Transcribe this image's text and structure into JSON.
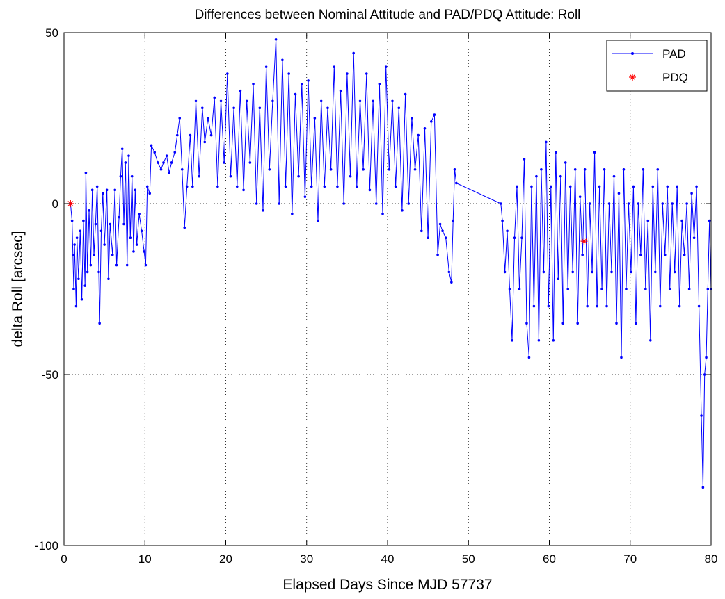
{
  "chart_data": {
    "type": "line",
    "title": "Differences between Nominal Attitude and PAD/PDQ Attitude: Roll",
    "xlabel": "Elapsed Days Since MJD 57737",
    "ylabel": "delta Roll [arcsec]",
    "xlim": [
      0,
      80
    ],
    "ylim": [
      -100,
      50
    ],
    "xticks": [
      0,
      10,
      20,
      30,
      40,
      50,
      60,
      70,
      80
    ],
    "yticks": [
      -100,
      -50,
      0,
      50
    ],
    "grid": true,
    "legend_position": "top-right",
    "series": [
      {
        "name": "PAD",
        "color": "#0000ff",
        "marker": "dot",
        "line": "solid",
        "points": [
          [
            0.8,
            0
          ],
          [
            1.0,
            -5
          ],
          [
            1.1,
            -15
          ],
          [
            1.2,
            -25
          ],
          [
            1.3,
            -12
          ],
          [
            1.5,
            -30
          ],
          [
            1.6,
            -10
          ],
          [
            1.8,
            -22
          ],
          [
            2.0,
            -8
          ],
          [
            2.2,
            -28
          ],
          [
            2.4,
            -5
          ],
          [
            2.6,
            -24
          ],
          [
            2.7,
            9
          ],
          [
            2.9,
            -20
          ],
          [
            3.1,
            -2
          ],
          [
            3.3,
            -18
          ],
          [
            3.5,
            4
          ],
          [
            3.7,
            -15
          ],
          [
            3.9,
            -6
          ],
          [
            4.1,
            5
          ],
          [
            4.3,
            -20
          ],
          [
            4.4,
            -35
          ],
          [
            4.6,
            -8
          ],
          [
            4.8,
            3
          ],
          [
            5.0,
            -12
          ],
          [
            5.3,
            4
          ],
          [
            5.5,
            -22
          ],
          [
            5.7,
            -6
          ],
          [
            6.0,
            -15
          ],
          [
            6.3,
            4
          ],
          [
            6.5,
            -18
          ],
          [
            6.8,
            -4
          ],
          [
            7.0,
            8
          ],
          [
            7.2,
            16
          ],
          [
            7.4,
            -6
          ],
          [
            7.6,
            12
          ],
          [
            7.8,
            -18
          ],
          [
            8.0,
            14
          ],
          [
            8.2,
            -10
          ],
          [
            8.4,
            8
          ],
          [
            8.6,
            -14
          ],
          [
            8.8,
            4
          ],
          [
            9.0,
            -12
          ],
          [
            9.3,
            -3
          ],
          [
            9.6,
            -8
          ],
          [
            9.9,
            -14
          ],
          [
            10.1,
            -18
          ],
          [
            10.3,
            5
          ],
          [
            10.6,
            3
          ],
          [
            10.8,
            17
          ],
          [
            11.2,
            15
          ],
          [
            11.6,
            12
          ],
          [
            12.0,
            10
          ],
          [
            12.3,
            12
          ],
          [
            12.7,
            14
          ],
          [
            13.0,
            9
          ],
          [
            13.3,
            12
          ],
          [
            13.7,
            15
          ],
          [
            14.0,
            20
          ],
          [
            14.3,
            25
          ],
          [
            14.6,
            10
          ],
          [
            14.9,
            -7
          ],
          [
            15.2,
            5
          ],
          [
            15.6,
            20
          ],
          [
            15.9,
            5
          ],
          [
            16.3,
            30
          ],
          [
            16.7,
            8
          ],
          [
            17.1,
            28
          ],
          [
            17.4,
            18
          ],
          [
            17.8,
            25
          ],
          [
            18.2,
            20
          ],
          [
            18.6,
            31
          ],
          [
            19.0,
            5
          ],
          [
            19.4,
            30
          ],
          [
            19.8,
            12
          ],
          [
            20.2,
            38
          ],
          [
            20.6,
            8
          ],
          [
            21.0,
            28
          ],
          [
            21.4,
            5
          ],
          [
            21.8,
            33
          ],
          [
            22.2,
            4
          ],
          [
            22.6,
            30
          ],
          [
            23.0,
            12
          ],
          [
            23.4,
            35
          ],
          [
            23.8,
            0
          ],
          [
            24.2,
            28
          ],
          [
            24.6,
            -2
          ],
          [
            25.0,
            40
          ],
          [
            25.4,
            10
          ],
          [
            25.8,
            30
          ],
          [
            26.2,
            48
          ],
          [
            26.6,
            0
          ],
          [
            27.0,
            42
          ],
          [
            27.4,
            5
          ],
          [
            27.8,
            38
          ],
          [
            28.2,
            -3
          ],
          [
            28.6,
            32
          ],
          [
            29.0,
            8
          ],
          [
            29.4,
            35
          ],
          [
            29.8,
            2
          ],
          [
            30.2,
            36
          ],
          [
            30.6,
            5
          ],
          [
            31.0,
            25
          ],
          [
            31.4,
            -5
          ],
          [
            31.8,
            30
          ],
          [
            32.2,
            5
          ],
          [
            32.6,
            28
          ],
          [
            33.0,
            10
          ],
          [
            33.4,
            40
          ],
          [
            33.8,
            5
          ],
          [
            34.2,
            33
          ],
          [
            34.6,
            0
          ],
          [
            35.0,
            38
          ],
          [
            35.4,
            8
          ],
          [
            35.8,
            44
          ],
          [
            36.2,
            5
          ],
          [
            36.6,
            30
          ],
          [
            37.0,
            10
          ],
          [
            37.4,
            38
          ],
          [
            37.8,
            4
          ],
          [
            38.2,
            30
          ],
          [
            38.6,
            0
          ],
          [
            39.0,
            35
          ],
          [
            39.4,
            -3
          ],
          [
            39.8,
            40
          ],
          [
            40.2,
            10
          ],
          [
            40.6,
            30
          ],
          [
            41.0,
            5
          ],
          [
            41.4,
            28
          ],
          [
            41.8,
            -2
          ],
          [
            42.2,
            32
          ],
          [
            42.6,
            0
          ],
          [
            43.0,
            25
          ],
          [
            43.4,
            10
          ],
          [
            43.8,
            20
          ],
          [
            44.2,
            -8
          ],
          [
            44.6,
            22
          ],
          [
            45.0,
            -10
          ],
          [
            45.4,
            24
          ],
          [
            45.8,
            26
          ],
          [
            46.2,
            -15
          ],
          [
            46.5,
            -6
          ],
          [
            46.8,
            -8
          ],
          [
            47.2,
            -10
          ],
          [
            47.6,
            -20
          ],
          [
            47.9,
            -23
          ],
          [
            48.1,
            -5
          ],
          [
            48.3,
            10
          ],
          [
            48.5,
            6
          ],
          [
            54.0,
            0
          ],
          [
            54.2,
            -5
          ],
          [
            54.5,
            -20
          ],
          [
            54.8,
            -8
          ],
          [
            55.1,
            -25
          ],
          [
            55.4,
            -40
          ],
          [
            55.7,
            -10
          ],
          [
            56.0,
            5
          ],
          [
            56.3,
            -25
          ],
          [
            56.6,
            -10
          ],
          [
            56.9,
            13
          ],
          [
            57.2,
            -35
          ],
          [
            57.5,
            -45
          ],
          [
            57.8,
            5
          ],
          [
            58.1,
            -30
          ],
          [
            58.4,
            8
          ],
          [
            58.7,
            -40
          ],
          [
            59.0,
            10
          ],
          [
            59.3,
            -20
          ],
          [
            59.6,
            18
          ],
          [
            59.9,
            -30
          ],
          [
            60.2,
            5
          ],
          [
            60.5,
            -40
          ],
          [
            60.8,
            15
          ],
          [
            61.1,
            -22
          ],
          [
            61.4,
            8
          ],
          [
            61.7,
            -35
          ],
          [
            62.0,
            12
          ],
          [
            62.3,
            -25
          ],
          [
            62.6,
            5
          ],
          [
            62.9,
            -20
          ],
          [
            63.2,
            10
          ],
          [
            63.5,
            -35
          ],
          [
            63.8,
            2
          ],
          [
            64.1,
            -15
          ],
          [
            64.4,
            10
          ],
          [
            64.7,
            -30
          ],
          [
            65.0,
            0
          ],
          [
            65.3,
            -20
          ],
          [
            65.6,
            15
          ],
          [
            65.9,
            -30
          ],
          [
            66.2,
            5
          ],
          [
            66.5,
            -25
          ],
          [
            66.8,
            10
          ],
          [
            67.1,
            -30
          ],
          [
            67.4,
            0
          ],
          [
            67.7,
            -20
          ],
          [
            68.0,
            8
          ],
          [
            68.3,
            -35
          ],
          [
            68.6,
            3
          ],
          [
            68.9,
            -45
          ],
          [
            69.2,
            10
          ],
          [
            69.5,
            -25
          ],
          [
            69.8,
            0
          ],
          [
            70.1,
            -20
          ],
          [
            70.4,
            5
          ],
          [
            70.7,
            -35
          ],
          [
            71.0,
            0
          ],
          [
            71.3,
            -15
          ],
          [
            71.6,
            10
          ],
          [
            71.9,
            -25
          ],
          [
            72.2,
            -5
          ],
          [
            72.5,
            -40
          ],
          [
            72.8,
            5
          ],
          [
            73.1,
            -20
          ],
          [
            73.4,
            10
          ],
          [
            73.7,
            -30
          ],
          [
            74.0,
            0
          ],
          [
            74.3,
            -15
          ],
          [
            74.6,
            5
          ],
          [
            74.9,
            -25
          ],
          [
            75.2,
            0
          ],
          [
            75.5,
            -20
          ],
          [
            75.8,
            5
          ],
          [
            76.1,
            -30
          ],
          [
            76.4,
            -5
          ],
          [
            76.7,
            -15
          ],
          [
            77.0,
            0
          ],
          [
            77.3,
            -25
          ],
          [
            77.6,
            3
          ],
          [
            77.9,
            -10
          ],
          [
            78.2,
            5
          ],
          [
            78.5,
            -30
          ],
          [
            78.8,
            -62
          ],
          [
            79.0,
            -83
          ],
          [
            79.2,
            -50
          ],
          [
            79.4,
            -45
          ],
          [
            79.6,
            -25
          ],
          [
            79.8,
            -5
          ],
          [
            80.0,
            -25
          ]
        ]
      },
      {
        "name": "PDQ",
        "color": "#ff0000",
        "marker": "asterisk",
        "line": "none",
        "points": [
          [
            0.8,
            0
          ],
          [
            64.3,
            -11
          ]
        ]
      }
    ]
  }
}
